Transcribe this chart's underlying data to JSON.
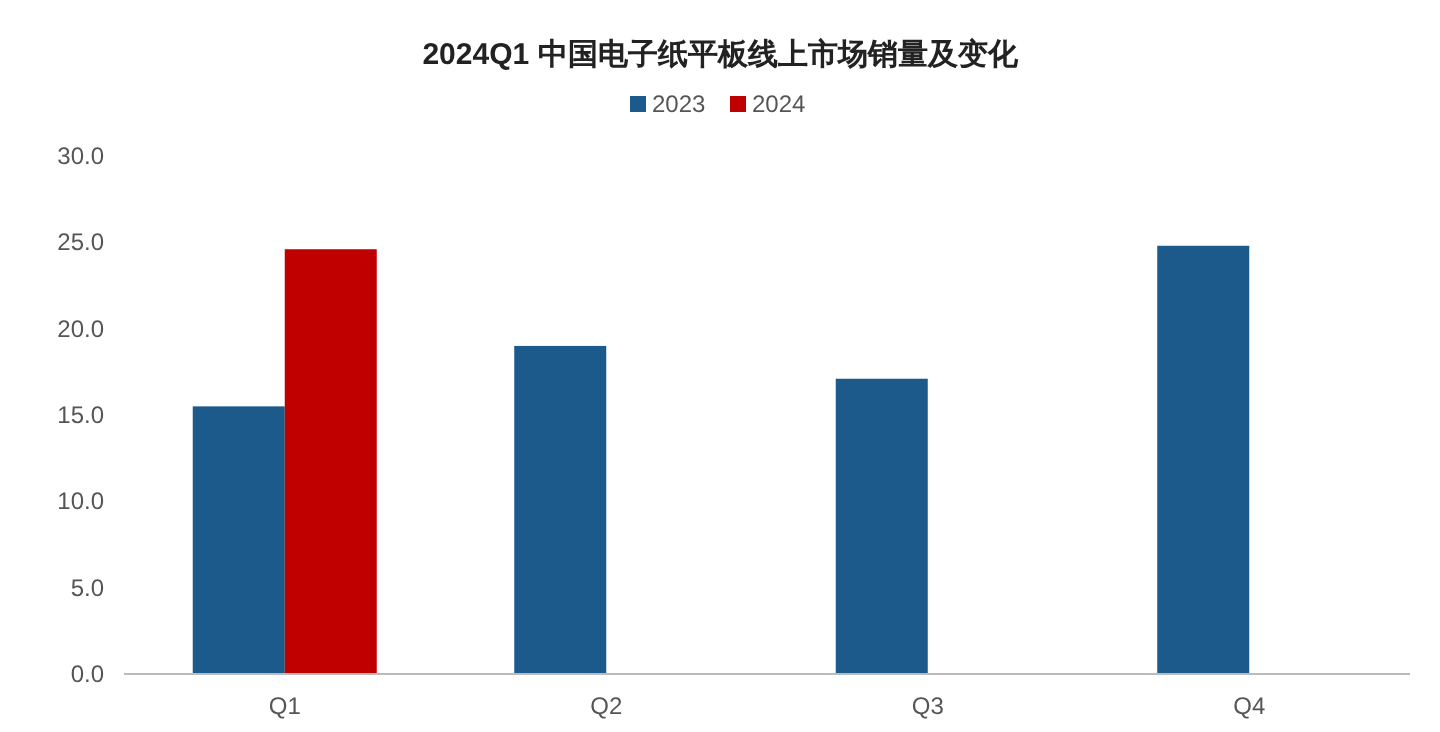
{
  "chart_data": {
    "type": "bar",
    "title": "2024Q1 中国电子纸平板线上市场销量及变化",
    "categories": [
      "Q1",
      "Q2",
      "Q3",
      "Q4"
    ],
    "series": [
      {
        "name": "2023",
        "color": "#1b5a8a",
        "values": [
          15.5,
          19.0,
          17.1,
          24.8
        ]
      },
      {
        "name": "2024",
        "color": "#c00000",
        "values": [
          24.6,
          null,
          null,
          null
        ]
      }
    ],
    "ylim": [
      0,
      30
    ],
    "yticks": [
      {
        "value": 0,
        "label": "0.0"
      },
      {
        "value": 5,
        "label": "5.0"
      },
      {
        "value": 10,
        "label": "10.0"
      },
      {
        "value": 15,
        "label": "15.0"
      },
      {
        "value": 20,
        "label": "20.0"
      },
      {
        "value": 25,
        "label": "25.0"
      },
      {
        "value": 30,
        "label": "30.0"
      }
    ],
    "grid": false,
    "legend": "top"
  }
}
